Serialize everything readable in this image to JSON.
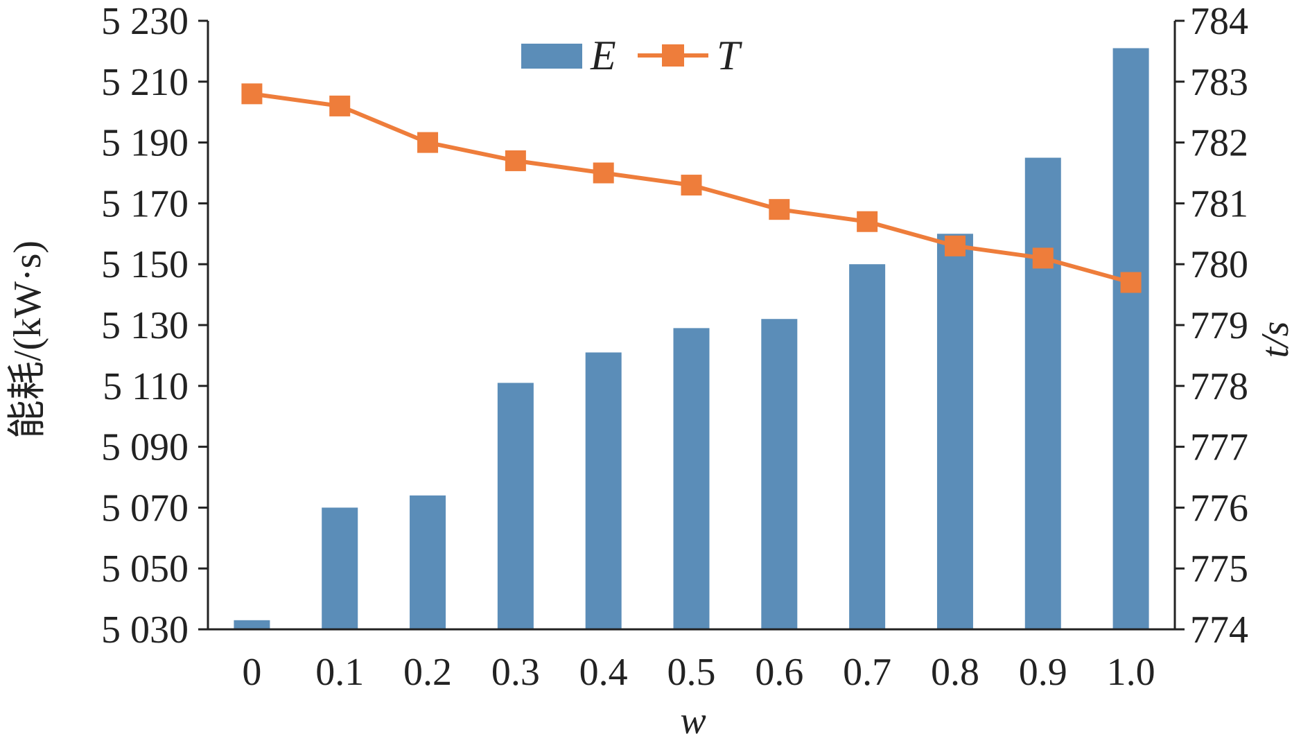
{
  "chart_data": {
    "type": "bar",
    "categories": [
      "0",
      "0.1",
      "0.2",
      "0.3",
      "0.4",
      "0.5",
      "0.6",
      "0.7",
      "0.8",
      "0.9",
      "1.0"
    ],
    "xlabel": "w",
    "ylabel": "能耗/(kW·s)",
    "y2label": "t/s",
    "ylim": [
      5030,
      5230
    ],
    "y2lim": [
      774,
      784
    ],
    "yticks": [
      "5 030",
      "5 050",
      "5 070",
      "5 090",
      "5 110",
      "5 130",
      "5 150",
      "5 170",
      "5 190",
      "5 210",
      "5 230"
    ],
    "y2ticks": [
      "774",
      "775",
      "776",
      "777",
      "778",
      "779",
      "780",
      "781",
      "782",
      "783",
      "784"
    ],
    "legend_position": "top-center",
    "grid": false,
    "series": [
      {
        "name": "E",
        "type": "bar",
        "axis": "left",
        "color": "#5b8db8",
        "values": [
          5033,
          5070,
          5074,
          5111,
          5121,
          5129,
          5132,
          5150,
          5160,
          5185,
          5221
        ]
      },
      {
        "name": "T",
        "type": "line",
        "axis": "right",
        "color": "#ee7d3b",
        "marker": "square",
        "values": [
          782.8,
          782.6,
          782.0,
          781.7,
          781.5,
          781.3,
          780.9,
          780.7,
          780.3,
          780.1,
          779.7
        ]
      }
    ]
  }
}
